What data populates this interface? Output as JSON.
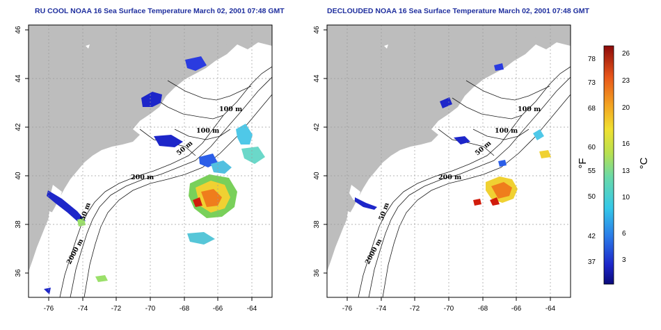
{
  "titles": {
    "left": "RU COOL NOAA 16 Sea Surface Temperature March 02, 2001 07:48 GMT",
    "right": "DECLOUDED NOAA 16 Sea Surface Temperature March 02, 2001 07:48 GMT"
  },
  "axes": {
    "lon_ticks": [
      "-76",
      "-74",
      "-72",
      "-70",
      "-68",
      "-66",
      "-64"
    ],
    "lat_ticks": [
      "36",
      "38",
      "40",
      "42",
      "44",
      "46"
    ],
    "lon_range": [
      -77.2,
      -62.8
    ],
    "lat_range": [
      35,
      46.2
    ]
  },
  "contour_labels": {
    "left": [
      "100 m",
      "100 m",
      "50 m",
      "200 m",
      "50 m",
      "2000 m"
    ],
    "right": [
      "100 m",
      "100 m",
      "50 m",
      "200 m",
      "50 m",
      "2000 m"
    ]
  },
  "colorbar": {
    "fahrenheit_unit": "°F",
    "celsius_unit": "°C",
    "fahrenheit_ticks": [
      "78",
      "73",
      "68",
      "60",
      "55",
      "50",
      "42",
      "37"
    ],
    "celsius_ticks": [
      "26",
      "23",
      "20",
      "16",
      "13",
      "10",
      "6",
      "3"
    ],
    "range_c": [
      0,
      27
    ]
  },
  "colors": {
    "land": "#bdbdbd",
    "title": "#1f2f9e",
    "grid": "#9a9a9a",
    "cold": "#1d26c9",
    "warm": "#d11c0c"
  }
}
